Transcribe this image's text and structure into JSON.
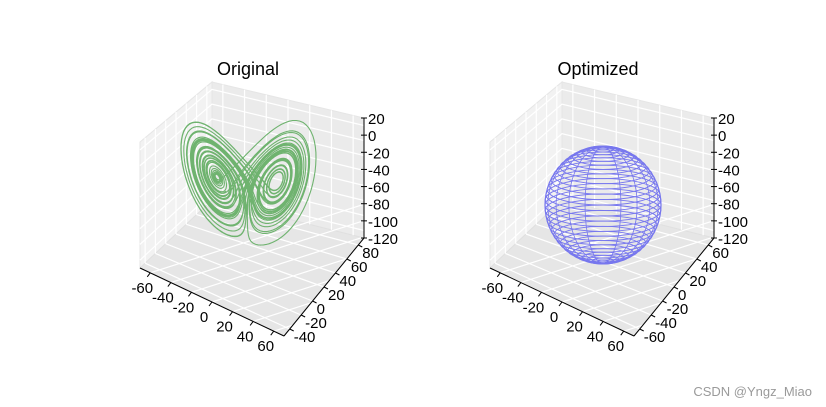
{
  "chart_data": [
    {
      "type": "line",
      "title": "Original",
      "projection": "3d",
      "series_color": "#6fb36f",
      "x_ticks": [
        "-60",
        "-40",
        "-20",
        "0",
        "20",
        "40",
        "60"
      ],
      "y_ticks": [
        "-40",
        "-20",
        "0",
        "20",
        "40",
        "60",
        "80"
      ],
      "z_ticks": [
        "20",
        "0",
        "-20",
        "-40",
        "-60",
        "-80",
        "-100",
        "-120"
      ],
      "xlim": [
        -70,
        70
      ],
      "ylim": [
        -45,
        85
      ],
      "zlim": [
        -125,
        25
      ],
      "grid": true
    },
    {
      "type": "line",
      "title": "Optimized",
      "projection": "3d",
      "series_color": "#7777ee",
      "x_ticks": [
        "-60",
        "-40",
        "-20",
        "0",
        "20",
        "40",
        "60"
      ],
      "y_ticks": [
        "-60",
        "-40",
        "-20",
        "0",
        "20",
        "40",
        "60"
      ],
      "z_ticks": [
        "20",
        "0",
        "-20",
        "-40",
        "-60",
        "-80",
        "-100",
        "-120"
      ],
      "xlim": [
        -70,
        70
      ],
      "ylim": [
        -65,
        65
      ],
      "zlim": [
        -125,
        25
      ],
      "grid": true
    }
  ],
  "watermark": "CSDN @Yngz_Miao"
}
